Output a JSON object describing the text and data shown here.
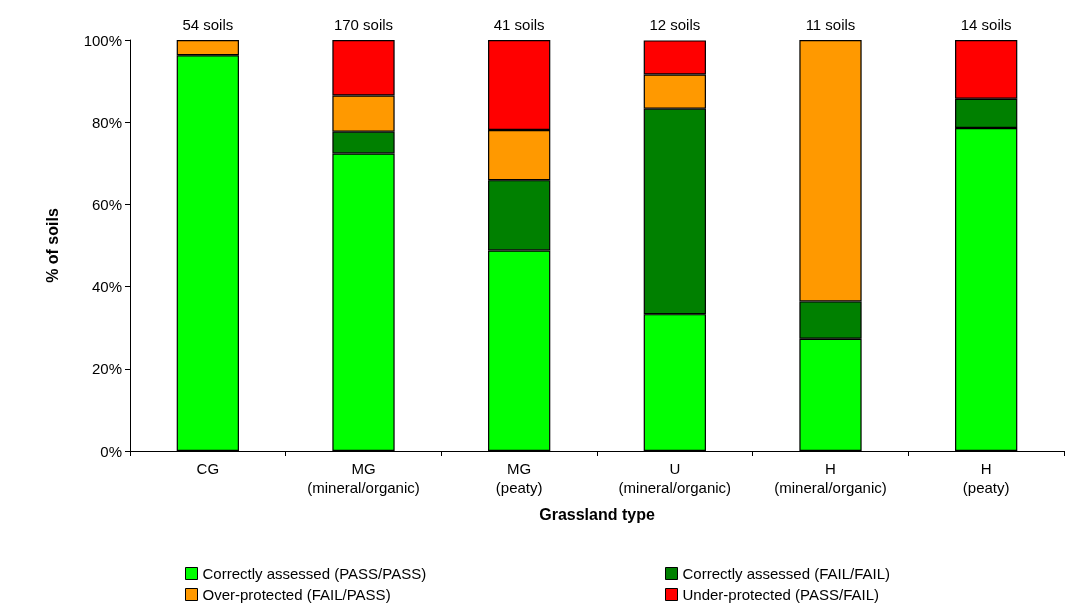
{
  "chart_data": {
    "type": "bar",
    "stacked": true,
    "xlabel": "Grassland type",
    "ylabel": "% of soils",
    "categories": [
      "CG",
      "MG\n(mineral/organic)",
      "MG\n(peaty)",
      "U\n(mineral/organic)",
      "H\n(mineral/organic)",
      "H\n(peaty)"
    ],
    "series": [
      {
        "name": "Correctly assessed (PASS/PASS)",
        "color": "#00ff00",
        "values": [
          96.3,
          72.4,
          48.8,
          33.3,
          27.3,
          78.6
        ]
      },
      {
        "name": "Correctly assessed (FAIL/FAIL)",
        "color": "#008000",
        "values": [
          0,
          5.3,
          17.1,
          50,
          9.1,
          7.1
        ]
      },
      {
        "name": "Over-protected (FAIL/PASS)",
        "color": "#ff9900",
        "values": [
          3.7,
          8.8,
          12.2,
          8.3,
          63.6,
          0
        ]
      },
      {
        "name": "Under-protected (PASS/FAIL)",
        "color": "#ff0000",
        "values": [
          0,
          13.5,
          21.9,
          8.3,
          0,
          14.3
        ]
      }
    ],
    "annotations": [
      {
        "text": "54 soils",
        "x": "CG",
        "y": 100
      },
      {
        "text": "170 soils",
        "x": "MG\n(mineral/organic)",
        "y": 100
      },
      {
        "text": "41 soils",
        "x": "MG\n(peaty)",
        "y": 100
      },
      {
        "text": "12 soils",
        "x": "U\n(mineral/organic)",
        "y": 100
      },
      {
        "text": "11 soils",
        "x": "H\n(mineral/organic)",
        "y": 100
      },
      {
        "text": "14 soils",
        "x": "H\n(peaty)",
        "y": 100
      }
    ],
    "ylim": [
      0,
      100
    ],
    "yticks": [
      {
        "value": 0,
        "label": "0%"
      },
      {
        "value": 20,
        "label": "20%"
      },
      {
        "value": 40,
        "label": "40%"
      },
      {
        "value": 60,
        "label": "60%"
      },
      {
        "value": 80,
        "label": "80%"
      },
      {
        "value": 100,
        "label": "100%"
      }
    ],
    "grid": false,
    "legend": "bottom"
  }
}
